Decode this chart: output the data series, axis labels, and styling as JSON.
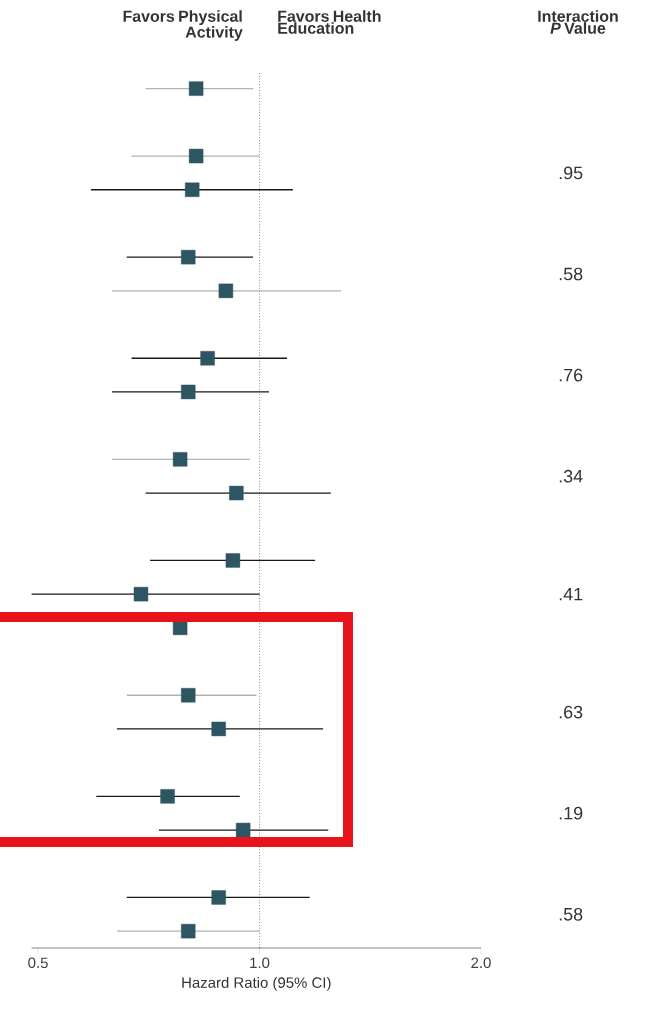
{
  "chart_data": {
    "type": "scatter",
    "orientation": "horizontal",
    "log": "x",
    "marker": "square",
    "xlabel": "Hazard Ratio (95% CI)",
    "categories": [
      null,
      null,
      null,
      null,
      null,
      null,
      null,
      null,
      null,
      null,
      null,
      null,
      null,
      null,
      null,
      null,
      null,
      null,
      null,
      null,
      null,
      null,
      null,
      null,
      null,
      null
    ],
    "series": [
      {
        "color": "#2e5562",
        "values": [
          0.82,
          null,
          0.82,
          null,
          null,
          null,
          0.9,
          null,
          null,
          null,
          null,
          0.78,
          null,
          null,
          null,
          null,
          0.78,
          null,
          0.8,
          null,
          null,
          null,
          null,
          null,
          null,
          0.8
        ],
        "errors": [
          [
            0.7,
            0.98
          ],
          null,
          [
            0.67,
            1.0
          ],
          null,
          null,
          null,
          [
            0.63,
            1.29
          ],
          null,
          null,
          null,
          null,
          [
            0.63,
            0.97
          ],
          null,
          null,
          null,
          null,
          null,
          null,
          [
            0.66,
            0.99
          ],
          null,
          null,
          null,
          null,
          null,
          null,
          [
            0.64,
            1.0
          ]
        ]
      },
      {
        "color": "#2e5562",
        "values": [
          null,
          null,
          null,
          0.81,
          null,
          0.8,
          null,
          null,
          0.85,
          0.8,
          null,
          null,
          0.93,
          null,
          0.92,
          0.69,
          null,
          null,
          null,
          0.88,
          null,
          0.75,
          0.95,
          null,
          0.88,
          null
        ],
        "errors": [
          null,
          null,
          null,
          [
            0.59,
            1.11
          ],
          null,
          [
            0.66,
            0.98
          ],
          null,
          null,
          [
            0.67,
            1.09
          ],
          [
            0.63,
            1.03
          ],
          null,
          null,
          [
            0.7,
            1.25
          ],
          null,
          [
            0.71,
            1.19
          ],
          [
            0.49,
            1.0
          ],
          null,
          null,
          null,
          [
            0.64,
            1.22
          ],
          null,
          [
            0.6,
            0.94
          ],
          [
            0.73,
            1.24
          ],
          null,
          [
            0.66,
            1.17
          ],
          null
        ]
      }
    ],
    "xlim": [
      0.49,
      2.0
    ],
    "xticks": [
      {
        "value": 0.5,
        "label": "0.5"
      },
      {
        "value": 1,
        "label": "1.0"
      },
      {
        "value": 2,
        "label": "2.0"
      }
    ],
    "ref_lines": [
      {
        "axis": "x",
        "value": 1,
        "line_style": "dotted"
      }
    ],
    "annotations": [
      "Favors Physical Activity",
      "Favors Health Education",
      "Interaction *P* Value",
      ".95",
      ".58",
      ".76",
      ".34",
      ".41",
      ".63",
      ".19",
      ".58"
    ]
  }
}
